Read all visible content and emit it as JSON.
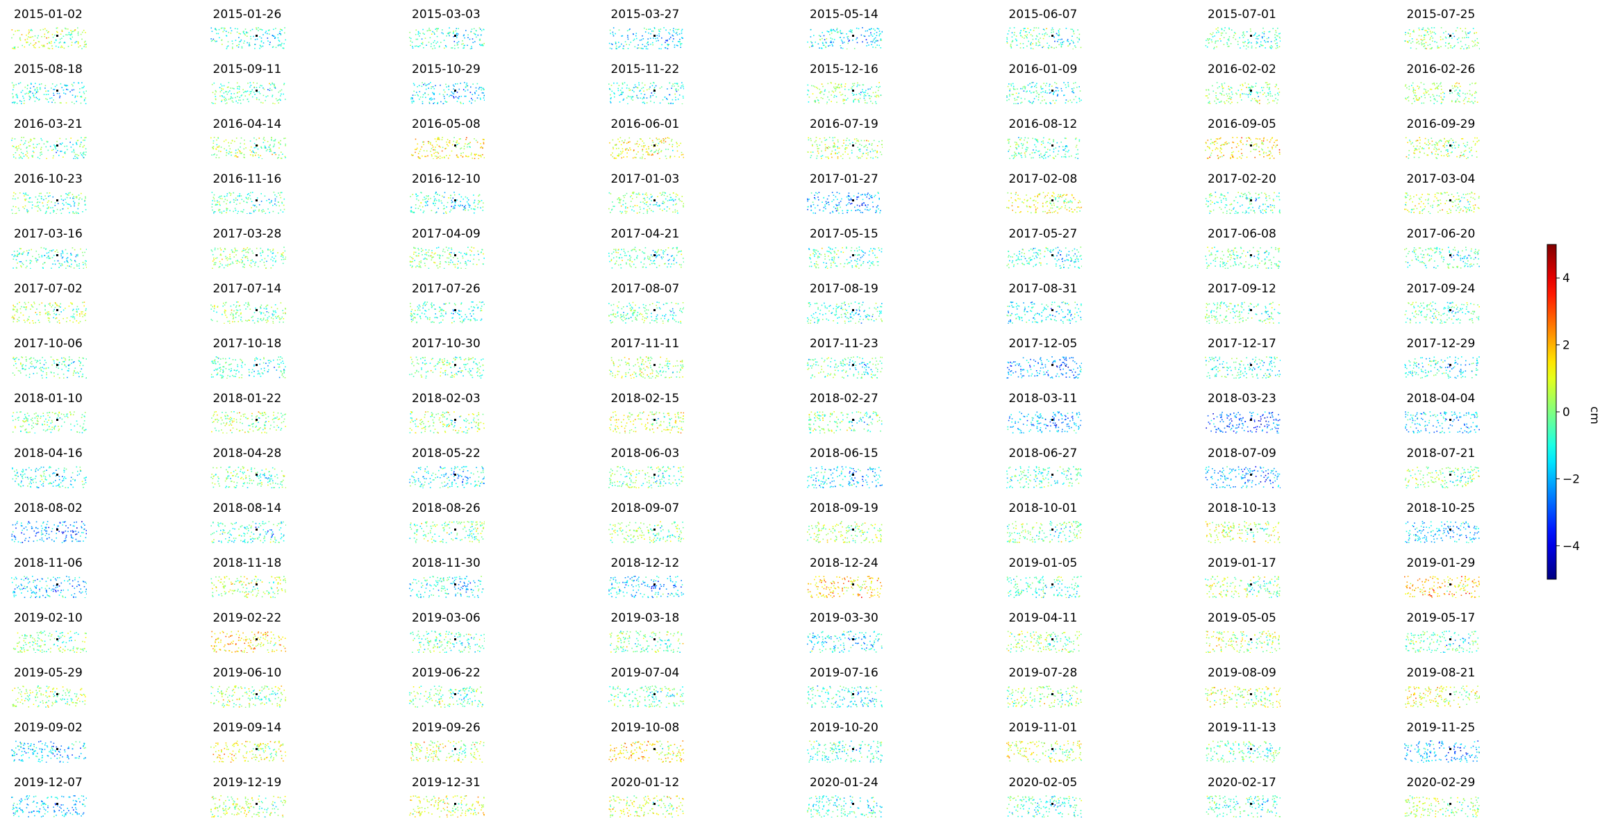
{
  "chart_data": {
    "type": "scatter",
    "layout": "small-multiples",
    "rows": 15,
    "columns": 8,
    "panel_titles": [
      "2015-01-02",
      "2015-01-26",
      "2015-03-03",
      "2015-03-27",
      "2015-05-14",
      "2015-06-07",
      "2015-07-01",
      "2015-07-25",
      "2015-08-18",
      "2015-09-11",
      "2015-10-29",
      "2015-11-22",
      "2015-12-16",
      "2016-01-09",
      "2016-02-02",
      "2016-02-26",
      "2016-03-21",
      "2016-04-14",
      "2016-05-08",
      "2016-06-01",
      "2016-07-19",
      "2016-08-12",
      "2016-09-05",
      "2016-09-29",
      "2016-10-23",
      "2016-11-16",
      "2016-12-10",
      "2017-01-03",
      "2017-01-27",
      "2017-02-08",
      "2017-02-20",
      "2017-03-04",
      "2017-03-16",
      "2017-03-28",
      "2017-04-09",
      "2017-04-21",
      "2017-05-15",
      "2017-05-27",
      "2017-06-08",
      "2017-06-20",
      "2017-07-02",
      "2017-07-14",
      "2017-07-26",
      "2017-08-07",
      "2017-08-19",
      "2017-08-31",
      "2017-09-12",
      "2017-09-24",
      "2017-10-06",
      "2017-10-18",
      "2017-10-30",
      "2017-11-11",
      "2017-11-23",
      "2017-12-05",
      "2017-12-17",
      "2017-12-29",
      "2018-01-10",
      "2018-01-22",
      "2018-02-03",
      "2018-02-15",
      "2018-02-27",
      "2018-03-11",
      "2018-03-23",
      "2018-04-04",
      "2018-04-16",
      "2018-04-28",
      "2018-05-22",
      "2018-06-03",
      "2018-06-15",
      "2018-06-27",
      "2018-07-09",
      "2018-07-21",
      "2018-08-02",
      "2018-08-14",
      "2018-08-26",
      "2018-09-07",
      "2018-09-19",
      "2018-10-01",
      "2018-10-13",
      "2018-10-25",
      "2018-11-06",
      "2018-11-18",
      "2018-11-30",
      "2018-12-12",
      "2018-12-24",
      "2019-01-05",
      "2019-01-17",
      "2019-01-29",
      "2019-02-10",
      "2019-02-22",
      "2019-03-06",
      "2019-03-18",
      "2019-03-30",
      "2019-04-11",
      "2019-05-05",
      "2019-05-17",
      "2019-05-29",
      "2019-06-10",
      "2019-06-22",
      "2019-07-04",
      "2019-07-16",
      "2019-07-28",
      "2019-08-09",
      "2019-08-21",
      "2019-09-02",
      "2019-09-14",
      "2019-09-26",
      "2019-10-08",
      "2019-10-20",
      "2019-11-01",
      "2019-11-13",
      "2019-11-25",
      "2019-12-07",
      "2019-12-19",
      "2019-12-31",
      "2020-01-12",
      "2020-01-24",
      "2020-02-05",
      "2020-02-17",
      "2020-02-29"
    ],
    "panel_means": [
      0.6,
      -0.8,
      -0.7,
      -1.4,
      -1.3,
      -0.4,
      -0.3,
      0.1,
      -0.9,
      -0.3,
      -1.5,
      -0.9,
      0.1,
      -0.8,
      0.3,
      0.4,
      -0.1,
      0.4,
      1.5,
      1.3,
      0.5,
      -0.3,
      1.6,
      0.6,
      -0.4,
      -0.5,
      -0.7,
      0.0,
      -1.8,
      1.2,
      -0.4,
      0.6,
      -0.5,
      0.1,
      0.0,
      -0.3,
      -0.4,
      -0.8,
      -0.3,
      -0.5,
      0.5,
      0.2,
      -0.6,
      -0.3,
      -0.7,
      -1.2,
      -0.2,
      -0.4,
      -0.4,
      -0.6,
      0.0,
      0.5,
      -0.4,
      -2.1,
      -0.7,
      -1.0,
      -0.1,
      0.4,
      0.3,
      0.9,
      -0.2,
      -1.8,
      -2.5,
      -1.6,
      -0.8,
      -0.1,
      -1.2,
      -0.1,
      -1.5,
      -0.5,
      -2.0,
      0.2,
      -2.2,
      -0.7,
      0.0,
      0.3,
      0.6,
      0.0,
      0.8,
      -1.8,
      -1.7,
      0.6,
      -1.1,
      -1.6,
      1.9,
      -0.6,
      0.3,
      2.0,
      0.2,
      1.8,
      -0.3,
      0.0,
      -1.1,
      0.2,
      0.6,
      -0.4,
      0.4,
      0.4,
      0.0,
      -0.2,
      -0.9,
      0.3,
      0.9,
      1.0,
      -1.6,
      1.2,
      0.8,
      1.5,
      -0.7,
      0.9,
      -0.3,
      -1.8,
      -1.6,
      0.5,
      1.0,
      0.8,
      -0.8,
      -0.6,
      -0.6,
      0.5
    ],
    "reference_point": "black",
    "colormap": "jet",
    "colorbar": {
      "range": [
        -5,
        5
      ],
      "ticks": [
        -4,
        -2,
        0,
        2,
        4
      ],
      "tick_labels": [
        "−4",
        "−2",
        "0",
        "2",
        "4"
      ],
      "label": "cm"
    }
  }
}
